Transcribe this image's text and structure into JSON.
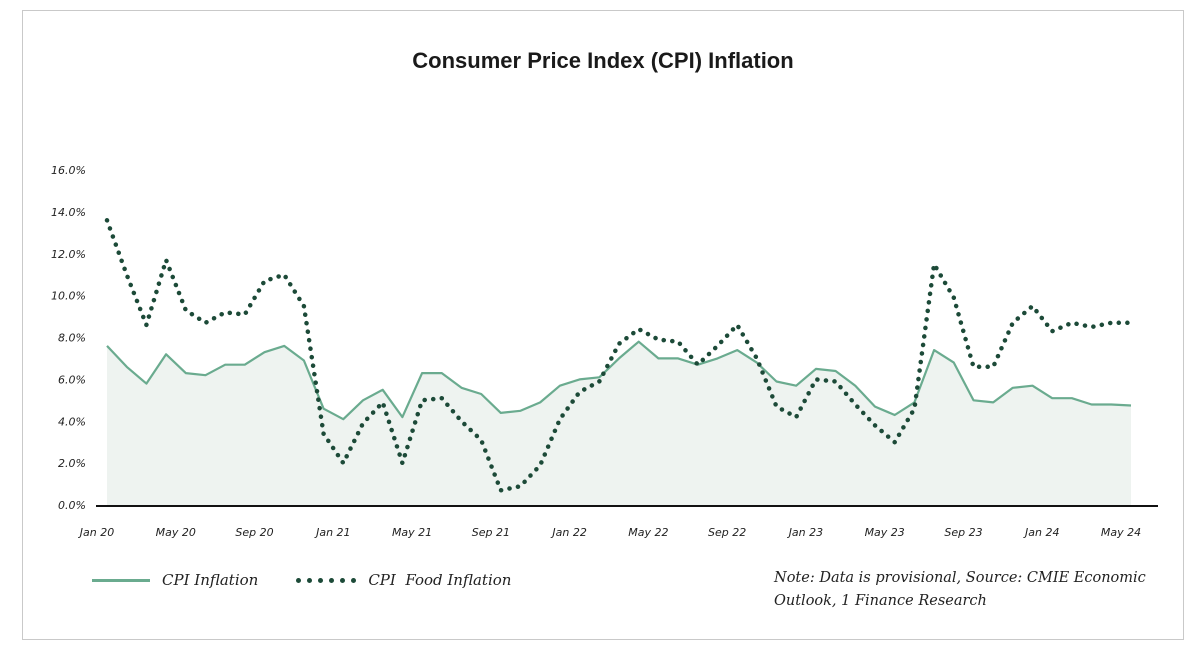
{
  "chart_data": {
    "type": "line",
    "title": "Consumer Price Index (CPI) Inflation",
    "xlabel": "",
    "ylabel": "",
    "ylim": [
      0,
      16
    ],
    "y_ticks": [
      "0.0%",
      "2.0%",
      "4.0%",
      "6.0%",
      "8.0%",
      "10.0%",
      "12.0%",
      "14.0%",
      "16.0%"
    ],
    "x_tick_labels": [
      "Jan 20",
      "May 20",
      "Sep 20",
      "Jan 21",
      "May 21",
      "Sep 21",
      "Jan 22",
      "May 22",
      "Sep 22",
      "Jan 23",
      "May 23",
      "Sep 23",
      "Jan 24",
      "May 24"
    ],
    "x_tick_every": 4,
    "grid": false,
    "legend_position": "bottom-left",
    "categories": [
      "Jan 20",
      "Feb 20",
      "Mar 20",
      "Apr 20",
      "May 20",
      "Jun 20",
      "Jul 20",
      "Aug 20",
      "Sep 20",
      "Oct 20",
      "Nov 20",
      "Dec 20",
      "Jan 21",
      "Feb 21",
      "Mar 21",
      "Apr 21",
      "May 21",
      "Jun 21",
      "Jul 21",
      "Aug 21",
      "Sep 21",
      "Oct 21",
      "Nov 21",
      "Dec 21",
      "Jan 22",
      "Feb 22",
      "Mar 22",
      "Apr 22",
      "May 22",
      "Jun 22",
      "Jul 22",
      "Aug 22",
      "Sep 22",
      "Oct 22",
      "Nov 22",
      "Dec 22",
      "Jan 23",
      "Feb 23",
      "Mar 23",
      "Apr 23",
      "May 23",
      "Jun 23",
      "Jul 23",
      "Aug 23",
      "Sep 23",
      "Oct 23",
      "Nov 23",
      "Dec 23",
      "Jan 24",
      "Feb 24",
      "Mar 24",
      "Apr 24",
      "May 24"
    ],
    "series": [
      {
        "name": "CPI Inflation",
        "style": "solid-area",
        "color": "#6aab8f",
        "fill": "#eef3f0",
        "values": [
          7.6,
          6.6,
          5.8,
          7.2,
          6.3,
          6.2,
          6.7,
          6.7,
          7.3,
          7.6,
          6.9,
          4.6,
          4.1,
          5.0,
          5.5,
          4.2,
          6.3,
          6.3,
          5.6,
          5.3,
          4.4,
          4.5,
          4.9,
          5.7,
          6.0,
          6.1,
          7.0,
          7.8,
          7.0,
          7.0,
          6.7,
          7.0,
          7.4,
          6.8,
          5.9,
          5.7,
          6.5,
          6.4,
          5.7,
          4.7,
          4.3,
          4.9,
          7.4,
          6.8,
          5.0,
          4.9,
          5.6,
          5.7,
          5.1,
          5.1,
          4.8,
          4.8,
          4.75
        ]
      },
      {
        "name": "CPI  Food Inflation",
        "style": "dotted",
        "color": "#1c4a38",
        "values": [
          13.6,
          11.0,
          8.6,
          11.7,
          9.3,
          8.7,
          9.2,
          9.1,
          10.7,
          11.0,
          9.5,
          3.4,
          2.0,
          3.9,
          4.9,
          2.0,
          5.0,
          5.1,
          4.0,
          3.1,
          0.7,
          0.9,
          1.9,
          4.1,
          5.4,
          5.9,
          7.7,
          8.4,
          7.9,
          7.8,
          6.7,
          7.6,
          8.6,
          7.0,
          4.7,
          4.2,
          6.0,
          5.9,
          4.8,
          3.8,
          3.0,
          4.6,
          11.5,
          9.9,
          6.6,
          6.6,
          8.7,
          9.5,
          8.3,
          8.7,
          8.5,
          8.7,
          8.7
        ]
      }
    ]
  },
  "legend": {
    "series1_label": "CPI Inflation",
    "series2_label": "CPI  Food Inflation"
  },
  "note": "Note: Data is provisional, Source: CMIE Economic Outlook, 1 Finance Research"
}
